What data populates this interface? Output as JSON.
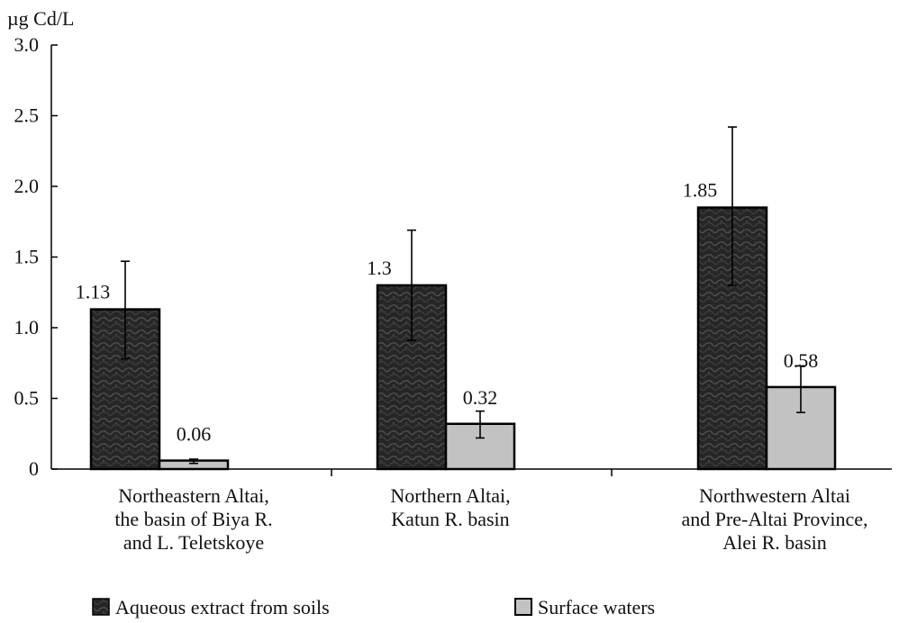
{
  "chart_data": {
    "type": "bar",
    "ylabel": "µg Cd/L",
    "ylim": [
      0,
      3.0
    ],
    "yticks": [
      "0",
      "0.5",
      "1.0",
      "1.5",
      "2.0",
      "2.5",
      "3.0"
    ],
    "grid": false,
    "legend_position": "bottom",
    "categories": [
      [
        "Northeastern Altai,",
        "the basin of Biya R.",
        "and L. Teletskoye"
      ],
      [
        "Northern Altai,",
        "Katun R. basin"
      ],
      [
        "Northwestern Altai",
        "and Pre-Altai Province,",
        "Alei R. basin"
      ]
    ],
    "series": [
      {
        "name": "Aqueous extract from soils",
        "values": [
          1.13,
          1.3,
          1.85
        ],
        "labels": [
          "1.13",
          "1.3",
          "1.85"
        ],
        "error_low": [
          0.78,
          0.91,
          1.3
        ],
        "error_high": [
          1.47,
          1.69,
          2.42
        ]
      },
      {
        "name": "Surface waters",
        "values": [
          0.06,
          0.32,
          0.58
        ],
        "labels": [
          "0.06",
          "0.32",
          "0.58"
        ],
        "error_low": [
          0.04,
          0.22,
          0.4
        ],
        "error_high": [
          0.07,
          0.41,
          0.73
        ]
      }
    ]
  },
  "colors": {
    "soil_fill": "#2b2b2b",
    "soil_pattern": "#4a4a4a",
    "water_fill": "#c2c2c2",
    "stroke": "#000000"
  }
}
